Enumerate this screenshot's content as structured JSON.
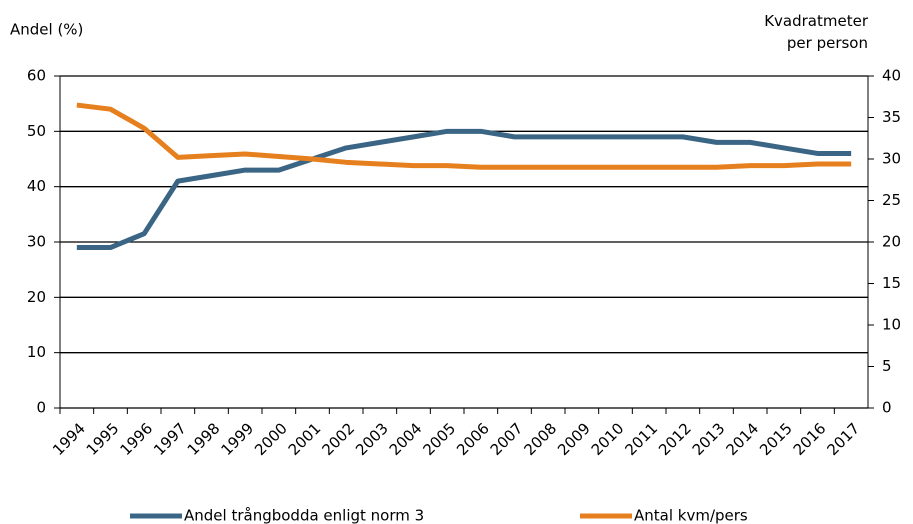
{
  "chart_data": {
    "type": "line",
    "ylabel": "Andel (%)",
    "y2label": "Kvadratmeter per person",
    "categories": [
      "1994",
      "1995",
      "1996",
      "1997",
      "1998",
      "1999",
      "2000",
      "2001",
      "2002",
      "2003",
      "2004",
      "2005",
      "2006",
      "2007",
      "2008",
      "2009",
      "2010",
      "2011",
      "2012",
      "2013",
      "2014",
      "2015",
      "2016",
      "2017"
    ],
    "series": [
      {
        "name": "Andel trångbodda enligt norm 3",
        "color": "#3b6585",
        "values": [
          29,
          29,
          31.5,
          41,
          42,
          43,
          43,
          45,
          47,
          48,
          49,
          50,
          50,
          49,
          49,
          49,
          49,
          49,
          49,
          48,
          48,
          47,
          46,
          46
        ]
      },
      {
        "name": "Antal kvm/pers",
        "color": "#e67f1e",
        "axis": "y2",
        "values": [
          36.5,
          36,
          33.7,
          30.2,
          30.4,
          30.6,
          30.3,
          30,
          29.6,
          29.4,
          29.2,
          29.2,
          29,
          29,
          29,
          29,
          29,
          29,
          29,
          29,
          29.2,
          29.2,
          29.4,
          29.4
        ]
      }
    ],
    "ylim": [
      0,
      60
    ],
    "yticks": [
      0,
      10,
      20,
      30,
      40,
      50,
      60
    ],
    "y2lim": [
      0,
      40
    ],
    "y2ticks": [
      0,
      5,
      10,
      15,
      20,
      25,
      30,
      35,
      40
    ],
    "grid": true,
    "legend": "bottom"
  }
}
